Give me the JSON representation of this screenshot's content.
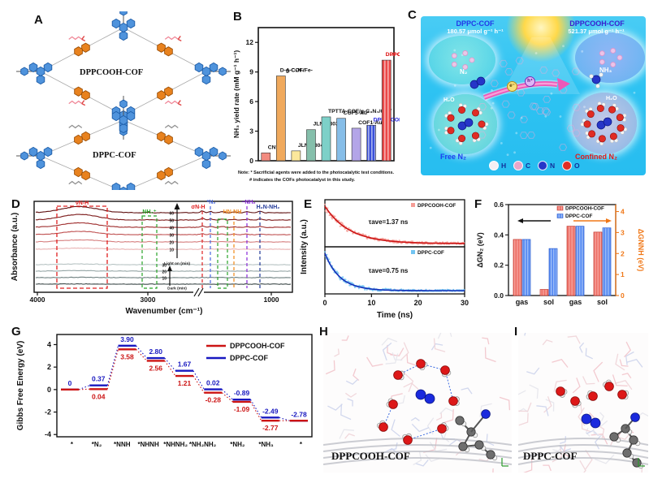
{
  "figure": {
    "panel_labels": {
      "A": "A",
      "B": "B",
      "C": "C",
      "D": "D",
      "E": "E",
      "F": "F",
      "G": "G",
      "H": "H",
      "I": "I"
    }
  },
  "panelA": {
    "top_structure": "DPPCOOH-COF",
    "bottom_structure": "DPPC-COF"
  },
  "panelC": {
    "left_title": "DPPC-COF",
    "left_rate": "180.57 μmol g⁻¹ h⁻¹",
    "right_title": "DPPCOOH-COF",
    "right_rate": "521.37 μmol g⁻¹ h⁻¹",
    "free_n2": "Free N₂",
    "confined_n2": "Confined N₂",
    "h2o": "H₂O",
    "n2": "N₂",
    "nh3": "NH₃",
    "electron": "e⁻",
    "hole": "h⁺",
    "legend": [
      {
        "symbol": "H",
        "color": "#f4eff3"
      },
      {
        "symbol": "C",
        "color": "#e8a6ca"
      },
      {
        "symbol": "N",
        "color": "#2636c8"
      },
      {
        "symbol": "O",
        "color": "#e02c24"
      }
    ]
  },
  "panelH": {
    "caption": "DPPCOOH-COF"
  },
  "panelI": {
    "caption": "DPPC-COF"
  },
  "chart_data": [
    {
      "id": "B",
      "type": "bar",
      "title": "",
      "ylabel": "NH₃ yield rate (mM g⁻¹ h⁻¹)",
      "ylim": [
        0,
        13.5
      ],
      "yticks": [
        0,
        3,
        6,
        9,
        12
      ],
      "categories": [
        "CN*",
        "D-A COF/Fe-\ng-C₃N₄",
        "JLNU-304*",
        "JLNU-303*",
        "TPTTA-COF/g-C₃N₄/CNT",
        "COF5-Au*",
        "COF1-Au*",
        "DPPC-COF#",
        "DPPCOO\nH-COF#"
      ],
      "values": [
        0.8,
        8.6,
        1.0,
        3.15,
        4.45,
        4.3,
        3.3,
        3.6,
        10.2
      ],
      "bar_colors": [
        "#f28b80",
        "#f0a95c",
        "#fbe79b",
        "#85bfab",
        "#7dd0c8",
        "#85bde8",
        "#b3a5e8",
        "#3a50d9",
        "#ea4848"
      ],
      "label_colors": [
        "#111111",
        "#111111",
        "#111111",
        "#111111",
        "#111111",
        "#111111",
        "#111111",
        "#2020dd",
        "#dd1111"
      ],
      "striped": [
        false,
        false,
        false,
        false,
        false,
        false,
        false,
        true,
        true
      ],
      "note1": "Note: * Sacrificial agents were added to the photocatalytic test conditions.",
      "note2": "# indicates the COFs photocatalyst in this study."
    },
    {
      "id": "D",
      "type": "line",
      "xlabel": "Wavenumber (cm⁻¹)",
      "ylabel": "Absorbance (a.u.)",
      "xticks": [
        "4000",
        "3000",
        "1000"
      ],
      "light_on": {
        "label": "Light on (min)",
        "times": [
          "60",
          "50",
          "40",
          "30",
          "20",
          "10"
        ]
      },
      "dark": {
        "label": "Dark (min)",
        "times": [
          "30",
          "20",
          "10"
        ]
      },
      "annotations": [
        {
          "text": "νN-H",
          "color": "#e02020",
          "kind": "box"
        },
        {
          "text": "NH₄⁺",
          "color": "#28a428",
          "kind": "box"
        },
        {
          "text": "σN-H",
          "color": "#e02020",
          "kind": "line"
        },
        {
          "text": "*N₂",
          "color": "#4868e0",
          "kind": "line"
        },
        {
          "text": "HN-NH",
          "color": "#f08818",
          "kind": "box"
        },
        {
          "text": "−NH₂",
          "color": "#8828d8",
          "kind": "line"
        },
        {
          "text": "H₂N-NH₂",
          "color": "#203898",
          "kind": "line"
        }
      ]
    },
    {
      "id": "E",
      "type": "scatter",
      "xlabel": "Time (ns)",
      "ylabel": "Intensity (a.u.)",
      "xlim": [
        0,
        30
      ],
      "xticks": [
        0,
        10,
        20,
        30
      ],
      "series": [
        {
          "name": "DPPCOOH-COF",
          "tau_label": "τave=1.37 ns",
          "tau_ns": 1.37,
          "dot_color": "#f59d96",
          "fit_color": "#cc1414"
        },
        {
          "name": "DPPC-COF",
          "tau_label": "τave=0.75 ns",
          "tau_ns": 0.75,
          "dot_color": "#72c4f2",
          "fit_color": "#1430b8"
        }
      ]
    },
    {
      "id": "F",
      "type": "bar",
      "ylabel_left": "ΔGN₂ (eV)",
      "ylabel_right": "ΔGNNH (eV)",
      "ylim_left": [
        0,
        0.6
      ],
      "ylim_right": [
        0,
        4.33
      ],
      "yticks_left": [
        "0.0",
        "0.2",
        "0.4",
        "0.6"
      ],
      "yticks_right": [
        "0",
        "1",
        "2",
        "3",
        "4"
      ],
      "categories": [
        "gas",
        "sol",
        "gas",
        "sol"
      ],
      "axis_for_group": [
        "left",
        "left",
        "right",
        "right"
      ],
      "right_axis_color": "#f07818",
      "series": [
        {
          "name": "DPPCOOH-COF",
          "color": "#ee7168",
          "values": [
            0.37,
            0.04,
            3.3,
            3.02
          ]
        },
        {
          "name": "DPPC-COF",
          "color": "#5b8df2",
          "values": [
            0.37,
            0.31,
            3.3,
            3.22
          ]
        }
      ]
    },
    {
      "id": "G",
      "type": "line",
      "ylabel": "Gibbs Free Energy (eV)",
      "ylim": [
        -4,
        5
      ],
      "yticks": [
        -4,
        -2,
        0,
        2,
        4
      ],
      "categories": [
        "*",
        "*N₂",
        "*NNH",
        "*NHNH",
        "*NHNH₂",
        "*NH₂NH₂",
        "*NH₂",
        "*NH₃",
        "*"
      ],
      "series": [
        {
          "name": "DPPCOOH-COF",
          "color": "#cc1414",
          "values": [
            0,
            0.04,
            3.58,
            2.56,
            1.21,
            -0.28,
            -1.09,
            -2.77,
            -2.77
          ],
          "value_labels": [
            "",
            "0.04",
            "3.58",
            "2.56",
            "1.21",
            "-0.28",
            "-1.09",
            "-2.77",
            ""
          ],
          "label_side": "below"
        },
        {
          "name": "DPPC-COF",
          "color": "#1818c0",
          "values": [
            0,
            0.37,
            3.9,
            2.8,
            1.67,
            0.02,
            -0.89,
            -2.49,
            -2.78
          ],
          "value_labels": [
            "0",
            "0.37",
            "3.90",
            "2.80",
            "1.67",
            "0.02",
            "-0.89",
            "-2.49",
            "-2.78"
          ],
          "label_side": "above"
        }
      ]
    }
  ]
}
